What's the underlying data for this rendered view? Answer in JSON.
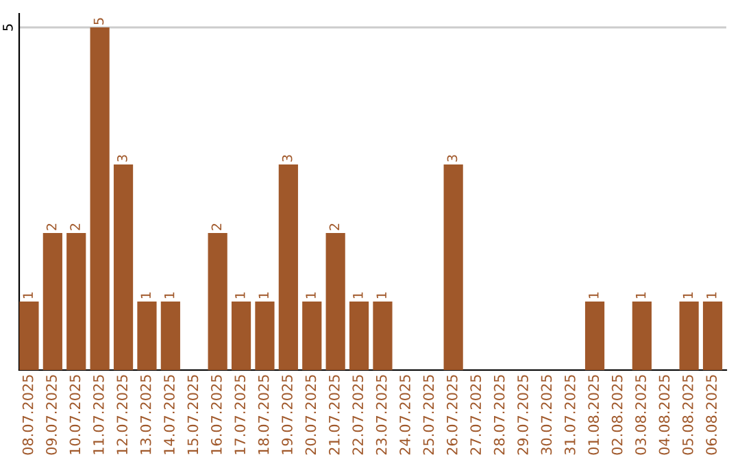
{
  "chart_data": {
    "type": "bar",
    "categories": [
      "08.07.2025",
      "09.07.2025",
      "10.07.2025",
      "11.07.2025",
      "12.07.2025",
      "13.07.2025",
      "14.07.2025",
      "15.07.2025",
      "16.07.2025",
      "17.07.2025",
      "18.07.2025",
      "19.07.2025",
      "20.07.2025",
      "21.07.2025",
      "22.07.2025",
      "23.07.2025",
      "24.07.2025",
      "25.07.2025",
      "26.07.2025",
      "27.07.2025",
      "28.07.2025",
      "29.07.2025",
      "30.07.2025",
      "31.07.2025",
      "01.08.2025",
      "02.08.2025",
      "03.08.2025",
      "04.08.2025",
      "05.08.2025",
      "06.08.2025"
    ],
    "values": [
      1,
      2,
      2,
      5,
      3,
      1,
      1,
      0,
      2,
      1,
      1,
      3,
      1,
      2,
      1,
      1,
      0,
      0,
      3,
      0,
      0,
      0,
      0,
      0,
      1,
      0,
      1,
      0,
      1,
      1
    ],
    "value_labels": [
      "1",
      "2",
      "2",
      "5",
      "3",
      "1",
      "1",
      null,
      "2",
      "1",
      "1",
      "3",
      "1",
      "2",
      "1",
      "1",
      null,
      null,
      "3",
      null,
      null,
      null,
      null,
      null,
      "1",
      null,
      "1",
      null,
      "1",
      "1"
    ],
    "color": "#a0582a",
    "ylim": [
      0,
      5.2
    ],
    "yticks": [
      5
    ],
    "grid": "y",
    "legend": false
  }
}
